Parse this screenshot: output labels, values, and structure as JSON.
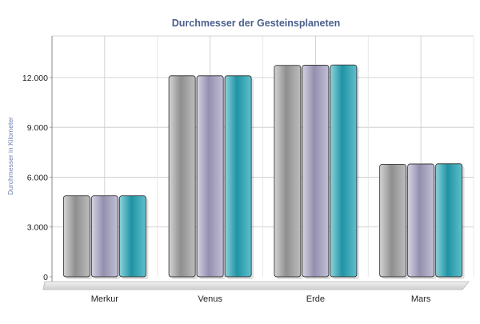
{
  "chart_data": {
    "type": "bar",
    "title": "Durchmesser der Gesteinsplaneten",
    "xlabel": "",
    "ylabel": "Durchmesser in Kilometer",
    "categories": [
      "Merkur",
      "Venus",
      "Erde",
      "Mars"
    ],
    "series": [
      {
        "values": [
          4879,
          12104,
          12735,
          6772
        ]
      },
      {
        "values": [
          4879,
          12104,
          12742,
          6792
        ]
      },
      {
        "values": [
          4879,
          12104,
          12756,
          6805
        ]
      }
    ],
    "ylim": [
      0,
      14500
    ],
    "yticks": [
      0,
      3000,
      6000,
      9000,
      12000
    ],
    "ytick_labels": [
      "0",
      "3.000",
      "6.000",
      "9.000",
      "12.000"
    ],
    "grid": true,
    "legend": "none",
    "colors": {
      "series": [
        "#9b9b9b",
        "#a09cb8",
        "#2fa3b3"
      ],
      "title": "#4a5f8c",
      "ylabel": "#6b7fae",
      "grid": "#c8c8c8",
      "axis": "#888888"
    }
  }
}
